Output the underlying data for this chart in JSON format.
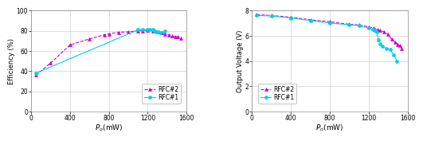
{
  "plot1": {
    "rfc1_x": [
      50,
      1100,
      1150,
      1200,
      1220,
      1250,
      1270,
      1290,
      1310,
      1330,
      1380
    ],
    "rfc1_y": [
      38,
      81,
      81.5,
      81,
      81,
      81,
      80,
      79,
      79,
      78,
      80
    ],
    "rfc2_x": [
      50,
      200,
      400,
      600,
      750,
      800,
      900,
      1000,
      1100,
      1150,
      1200,
      1250,
      1280,
      1310,
      1340,
      1380,
      1420,
      1450,
      1480,
      1510,
      1540
    ],
    "rfc2_y": [
      36,
      48,
      66,
      72,
      76,
      77,
      78.5,
      79,
      80,
      80,
      80.5,
      80,
      80,
      79,
      78,
      77,
      76,
      75,
      74,
      74,
      73
    ],
    "ylabel": "Efficiency (%)",
    "xlabel": "$\\mathit{P}_{o}$(mW)",
    "xlim": [
      0,
      1600
    ],
    "ylim": [
      0,
      100
    ],
    "yticks": [
      0,
      20,
      40,
      60,
      80,
      100
    ],
    "xticks": [
      0,
      400,
      800,
      1200,
      1600
    ],
    "legend_loc": "lower right"
  },
  "plot2": {
    "rfc1_x": [
      50,
      200,
      400,
      600,
      800,
      1000,
      1100,
      1200,
      1240,
      1260,
      1280,
      1300,
      1320,
      1340,
      1380,
      1420,
      1460,
      1490
    ],
    "rfc1_y": [
      7.62,
      7.58,
      7.42,
      7.22,
      7.02,
      6.88,
      6.82,
      6.62,
      6.5,
      6.42,
      6.3,
      5.7,
      5.4,
      5.2,
      5.0,
      4.9,
      4.5,
      4.0
    ],
    "rfc2_x": [
      50,
      200,
      400,
      600,
      800,
      1000,
      1100,
      1200,
      1250,
      1290,
      1320,
      1360,
      1400,
      1440,
      1470,
      1500,
      1520,
      1540
    ],
    "rfc2_y": [
      7.68,
      7.62,
      7.48,
      7.28,
      7.12,
      6.92,
      6.87,
      6.72,
      6.62,
      6.52,
      6.42,
      6.32,
      6.12,
      5.72,
      5.52,
      5.32,
      5.22,
      5.02
    ],
    "ylabel": "Output Voltage (V)",
    "xlabel": "$\\mathit{P}_{o}$(mW)",
    "xlim": [
      0,
      1600
    ],
    "ylim": [
      0,
      8
    ],
    "yticks": [
      0,
      2,
      4,
      6,
      8
    ],
    "xticks": [
      0,
      400,
      800,
      1200,
      1600
    ],
    "legend_loc": "lower left"
  },
  "rfc1_color": "#00d0e8",
  "rfc2_color": "#cc00cc",
  "rfc1_label": "RFC#1",
  "rfc2_label": "RFC#2",
  "grid_color": "#d0d0d0",
  "bg_color": "#ffffff"
}
